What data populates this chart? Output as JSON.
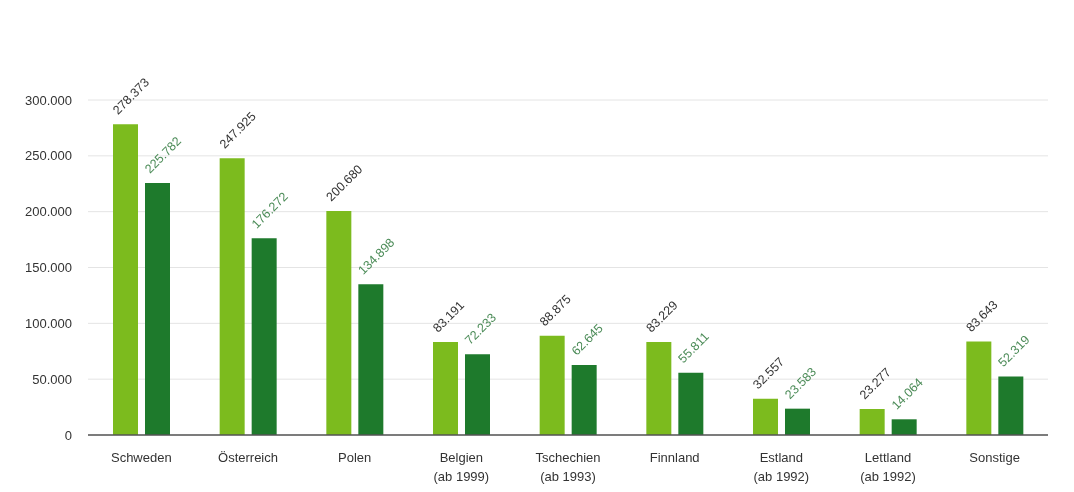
{
  "chart_data": {
    "type": "bar",
    "categories": [
      "Schweden",
      "Österreich",
      "Polen",
      "Belgien\n(ab 1999)",
      "Tschechien\n(ab 1993)",
      "Finnland",
      "Estland\n(ab 1992)",
      "Lettland\n(ab 1992)",
      "Sonstige"
    ],
    "series": [
      {
        "color": "#7cbb1e",
        "values": [
          278373,
          247925,
          200680,
          83191,
          88875,
          83229,
          32557,
          23277,
          83643
        ],
        "value_labels": [
          "278.373",
          "247.925",
          "200.680",
          "83.191",
          "88.875",
          "83.229",
          "32.557",
          "23.277",
          "83.643"
        ]
      },
      {
        "color": "#1e7a2c",
        "values": [
          225782,
          176272,
          134898,
          72233,
          62645,
          55811,
          23583,
          14064,
          52319
        ],
        "value_labels": [
          "225.782",
          "176.272",
          "134.898",
          "72.233",
          "62.645",
          "55.811",
          "23.583",
          "14.064",
          "52.319"
        ]
      }
    ],
    "ylim": [
      0,
      300000
    ],
    "yticks": [
      0,
      {
        "value": 50000,
        "label": "50.000"
      },
      {
        "value": 100000,
        "label": "100.000"
      },
      {
        "value": 150000,
        "label": "150.000"
      },
      {
        "value": 200000,
        "label": "200.000"
      },
      {
        "value": 250000,
        "label": "250.000"
      },
      {
        "value": 300000,
        "label": "300.000"
      }
    ],
    "grid": "y"
  }
}
